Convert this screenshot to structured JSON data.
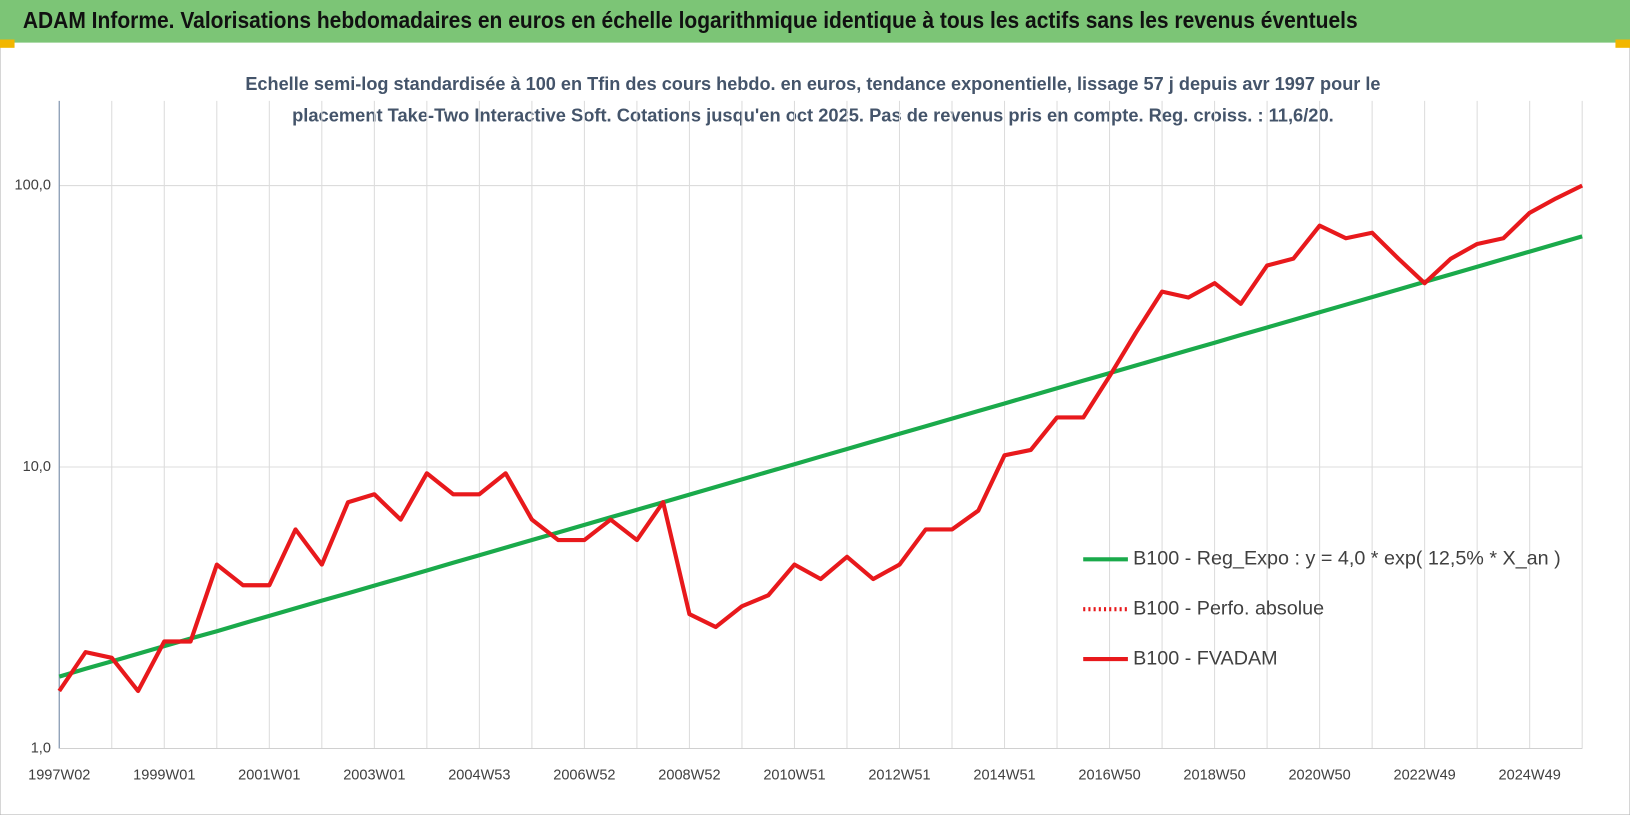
{
  "header": {
    "title": "ADAM Informe. Valorisations hebdomadaires en euros en échelle logarithmique identique à tous les actifs sans les revenus éventuels"
  },
  "chart_data": {
    "type": "line",
    "subtitle": [
      "Echelle semi-log standardisée à 100 en Tfin des cours hebdo. en euros, tendance exponentielle, lissage 57 j depuis avr 1997 pour le",
      "placement Take-Two Interactive Soft.  Cotations jusqu'en oct 2025.  Pas de revenus pris en compte.  Reg. croiss. : 11,6/20."
    ],
    "log_scale": true,
    "grid": true,
    "legend": "right",
    "ylim": [
      1,
      200
    ],
    "yticks": [
      {
        "value": 1,
        "label": "1,0"
      },
      {
        "value": 10,
        "label": "10,0"
      },
      {
        "value": 100,
        "label": "100,0"
      }
    ],
    "categories": [
      "1997W02",
      null,
      null,
      null,
      "1999W01",
      null,
      null,
      null,
      "2001W01",
      null,
      null,
      null,
      "2003W01",
      null,
      null,
      null,
      "2004W53",
      null,
      null,
      null,
      "2006W52",
      null,
      null,
      null,
      "2008W52",
      null,
      null,
      null,
      "2010W51",
      null,
      null,
      null,
      "2012W51",
      null,
      null,
      null,
      "2014W51",
      null,
      null,
      null,
      "2016W50",
      null,
      null,
      null,
      "2018W50",
      null,
      null,
      null,
      "2020W50",
      null,
      null,
      null,
      "2022W49",
      null,
      null,
      null,
      "2024W49",
      null,
      null
    ],
    "series": [
      {
        "name": "B100 - Reg_Expo : y = 4,0 * exp( 12,5% *  X_an )",
        "color": "#1aaa4b",
        "dash": "solid",
        "values": [
          1.8,
          1.92,
          2.04,
          2.17,
          2.31,
          2.46,
          2.61,
          2.78,
          2.96,
          3.15,
          3.35,
          3.56,
          3.79,
          4.03,
          4.29,
          4.57,
          4.86,
          5.17,
          5.5,
          5.85,
          6.23,
          6.63,
          7.05,
          7.5,
          7.98,
          8.49,
          9.04,
          9.62,
          10.23,
          10.89,
          11.59,
          12.33,
          13.12,
          13.96,
          14.86,
          15.81,
          16.82,
          17.9,
          19.05,
          20.27,
          21.57,
          22.95,
          24.42,
          25.99,
          27.65,
          29.43,
          31.31,
          33.32,
          35.45,
          37.73,
          40.14,
          42.72,
          45.45,
          48.37,
          51.47,
          54.77,
          58.28,
          62.02,
          66.0
        ]
      },
      {
        "name": "B100 - Perfo. absolue",
        "color": "#e8191c",
        "dash": "dotted"
      },
      {
        "name": "B100 - FVADAM",
        "color": "#e8191c",
        "dash": "solid",
        "values": [
          1.6,
          2.2,
          2.1,
          1.6,
          2.4,
          2.4,
          4.5,
          3.8,
          3.8,
          6.0,
          4.5,
          7.5,
          8.0,
          6.5,
          9.5,
          8.0,
          8.0,
          9.5,
          6.5,
          5.5,
          5.5,
          6.5,
          5.5,
          7.5,
          3.0,
          2.7,
          3.2,
          3.5,
          4.5,
          4.0,
          4.8,
          4.0,
          4.5,
          6.0,
          6.0,
          7.0,
          11.0,
          11.5,
          15.0,
          15.0,
          21.0,
          30.0,
          42.0,
          40.0,
          45.0,
          38.0,
          52.0,
          55.0,
          72.0,
          65.0,
          68.0,
          55.0,
          45.0,
          55.0,
          62.0,
          65.0,
          80.0,
          90.0,
          100.0
        ]
      }
    ]
  }
}
